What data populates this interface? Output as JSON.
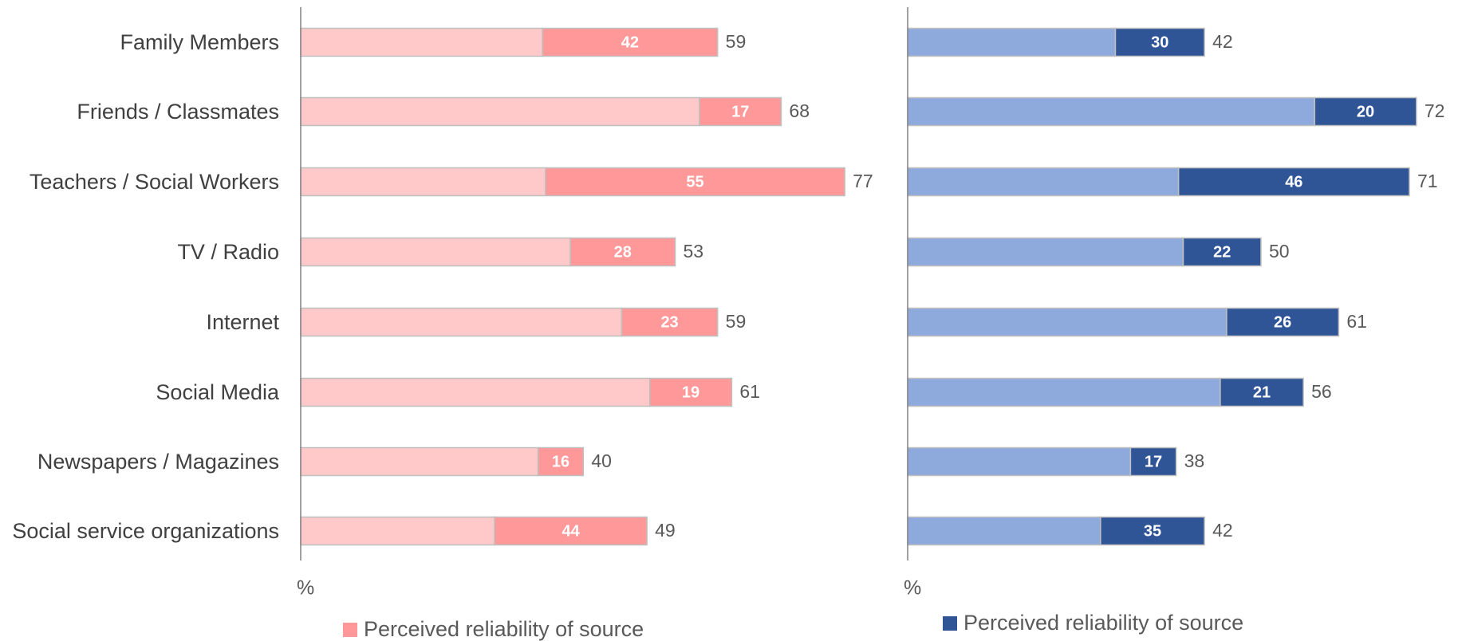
{
  "chart_data": [
    {
      "type": "bar-stacked-share",
      "orientation": "horizontal",
      "categories": [
        "Family Members",
        "Friends / Classmates",
        "Teachers / Social Workers",
        "TV / Radio",
        "Internet",
        "Social Media",
        "Newspapers / Magazines",
        "Social service organizations"
      ],
      "values": [
        59,
        68,
        77,
        53,
        59,
        61,
        40,
        49
      ],
      "base_color": "#ffc9c9",
      "reliability": {
        "name": "Perceived reliability of source",
        "color": "#ff9999",
        "values": [
          42,
          17,
          55,
          28,
          23,
          19,
          16,
          44
        ]
      },
      "x_label": "%",
      "xlim": [
        0,
        78
      ]
    },
    {
      "type": "bar-stacked-share",
      "orientation": "horizontal",
      "values": [
        42,
        72,
        71,
        50,
        61,
        56,
        38,
        42
      ],
      "base_color": "#8eaadc",
      "reliability": {
        "name": "Perceived reliability of source",
        "color": "#2f5597",
        "values": [
          30,
          20,
          46,
          22,
          26,
          21,
          17,
          35
        ]
      },
      "x_label": "%",
      "xlim": [
        0,
        78
      ]
    }
  ]
}
